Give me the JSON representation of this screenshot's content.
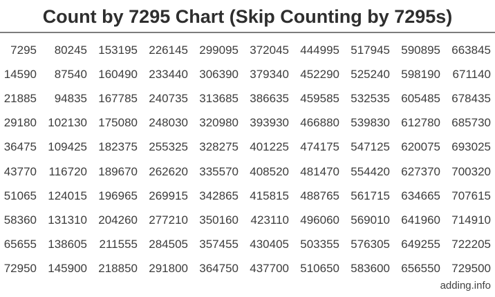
{
  "header": {
    "title": "Count by 7295 Chart (Skip Counting by 7295s)"
  },
  "footer": {
    "site": "adding.info"
  },
  "colors": {
    "title_text": "#2e2e2e",
    "number_text": "#3c3c3c",
    "divider": "#7d7d7d",
    "background": "#ffffff"
  },
  "chart_data": {
    "type": "table",
    "title": "Count by 7295 Chart (Skip Counting by 7295s)",
    "step": 7295,
    "layout": "10 rows x 10 columns; counting continues down each column then to the next column; cell value = 7295 * (row_index + 1 + 10 * column_index)",
    "rows": [
      [
        7295,
        80245,
        153195,
        226145,
        299095,
        372045,
        444995,
        517945,
        590895,
        663845
      ],
      [
        14590,
        87540,
        160490,
        233440,
        306390,
        379340,
        452290,
        525240,
        598190,
        671140
      ],
      [
        21885,
        94835,
        167785,
        240735,
        313685,
        386635,
        459585,
        532535,
        605485,
        678435
      ],
      [
        29180,
        102130,
        175080,
        248030,
        320980,
        393930,
        466880,
        539830,
        612780,
        685730
      ],
      [
        36475,
        109425,
        182375,
        255325,
        328275,
        401225,
        474175,
        547125,
        620075,
        693025
      ],
      [
        43770,
        116720,
        189670,
        262620,
        335570,
        408520,
        481470,
        554420,
        627370,
        700320
      ],
      [
        51065,
        124015,
        196965,
        269915,
        342865,
        415815,
        488765,
        561715,
        634665,
        707615
      ],
      [
        58360,
        131310,
        204260,
        277210,
        350160,
        423110,
        496060,
        569010,
        641960,
        714910
      ],
      [
        65655,
        138605,
        211555,
        284505,
        357455,
        430405,
        503355,
        576305,
        649255,
        722205
      ],
      [
        72950,
        145900,
        218850,
        291800,
        364750,
        437700,
        510650,
        583600,
        656550,
        729500
      ]
    ]
  }
}
